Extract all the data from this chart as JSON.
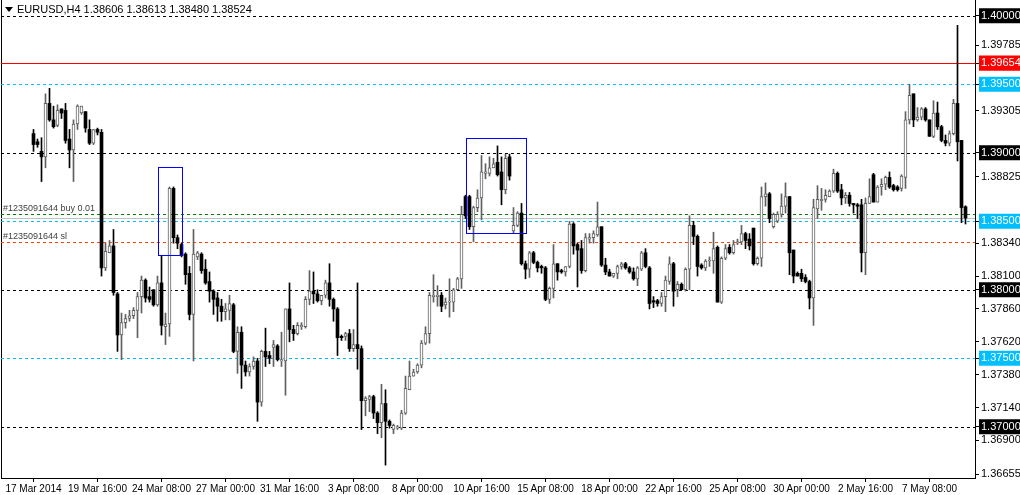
{
  "chart_data": {
    "type": "candlestick",
    "title": "EURUSD,H4 1.38606 1.38613 1.38480 1.38524",
    "categories": [
      "17 Mar 2014",
      null,
      null,
      null,
      null,
      null,
      null,
      null,
      null,
      null,
      null,
      null,
      null,
      null,
      null,
      null,
      "19 Mar 16:00",
      null,
      null,
      null,
      null,
      null,
      null,
      null,
      null,
      null,
      null,
      null,
      null,
      null,
      null,
      null,
      "24 Mar 08:00",
      null,
      null,
      null,
      null,
      null,
      null,
      null,
      null,
      null,
      null,
      null,
      null,
      null,
      null,
      null,
      "27 Mar 00:00",
      null,
      null,
      null,
      null,
      null,
      null,
      null,
      null,
      null,
      null,
      null,
      null,
      null,
      null,
      null,
      "31 Mar 16:00",
      null,
      null,
      null,
      null,
      null,
      null,
      null,
      null,
      null,
      null,
      null,
      null,
      null,
      null,
      null,
      "3 Apr 08:00",
      null,
      null,
      null,
      null,
      null,
      null,
      null,
      null,
      null,
      null,
      null,
      null,
      null,
      null,
      null,
      "8 Apr 00:00",
      null,
      null,
      null,
      null,
      null,
      null,
      null,
      null,
      null,
      null,
      null,
      null,
      null,
      null,
      null,
      "10 Apr 16:00",
      null,
      null,
      null,
      null,
      null,
      null,
      null,
      null,
      null,
      null,
      null,
      null,
      null,
      null,
      null,
      "15 Apr 08:00",
      null,
      null,
      null,
      null,
      null,
      null,
      null,
      null,
      null,
      null,
      null,
      null,
      null,
      null,
      null,
      "18 Apr 00:00",
      null,
      null,
      null,
      null,
      null,
      null,
      null,
      null,
      null,
      null,
      null,
      null,
      null,
      null,
      null,
      "22 Apr 16:00",
      null,
      null,
      null,
      null,
      null,
      null,
      null,
      null,
      null,
      null,
      null,
      null,
      null,
      null,
      null,
      "25 Apr 08:00",
      null,
      null,
      null,
      null,
      null,
      null,
      null,
      null,
      null,
      null,
      null,
      null,
      null,
      null,
      null,
      "30 Apr 00:00",
      null,
      null,
      null,
      null,
      null,
      null,
      null,
      null,
      null,
      null,
      null,
      null,
      null,
      null,
      null,
      "2 May 16:00",
      null,
      null,
      null,
      null,
      null,
      null,
      null,
      null,
      null,
      null,
      null,
      null,
      null,
      null,
      null,
      "7 May 08:00",
      null,
      null,
      null,
      null,
      null,
      null,
      null,
      null,
      null
    ],
    "ohlc": [
      [
        1.3914,
        1.3917,
        1.3901,
        1.3906
      ],
      [
        1.3908,
        1.391,
        1.3904,
        1.3906
      ],
      [
        1.3901,
        1.3911,
        1.3879,
        1.3897
      ],
      [
        1.3897,
        1.3943,
        1.3889,
        1.3936
      ],
      [
        1.3936,
        1.3947,
        1.3923,
        1.3924
      ],
      [
        1.3924,
        1.3934,
        1.3918,
        1.3919
      ],
      [
        1.392,
        1.3935,
        1.3919,
        1.3931
      ],
      [
        1.3932,
        1.3932,
        1.3925,
        1.3929
      ],
      [
        1.3931,
        1.3936,
        1.3907,
        1.3909
      ],
      [
        1.391,
        1.3917,
        1.3889,
        1.3902
      ],
      [
        1.3902,
        1.3924,
        1.3879,
        1.3921
      ],
      [
        1.3921,
        1.3935,
        1.3917,
        1.3934
      ],
      [
        1.3929,
        1.3934,
        1.3928,
        1.3934
      ],
      [
        1.393,
        1.393,
        1.3915,
        1.3918
      ],
      [
        1.3917,
        1.3924,
        1.3906,
        1.3907
      ],
      [
        1.3907,
        1.3917,
        1.3906,
        1.3917
      ],
      [
        1.3917,
        1.3918,
        1.3913,
        1.3915
      ],
      [
        1.3915,
        1.3917,
        1.381,
        1.3816
      ],
      [
        1.3816,
        1.3834,
        1.3814,
        1.3828
      ],
      [
        1.3827,
        1.3836,
        1.3827,
        1.3832
      ],
      [
        1.3832,
        1.3844,
        1.3796,
        1.3798
      ],
      [
        1.3797,
        1.3798,
        1.3755,
        1.3767
      ],
      [
        1.3767,
        1.3783,
        1.3749,
        1.3776
      ],
      [
        1.3776,
        1.3782,
        1.3772,
        1.3779
      ],
      [
        1.3779,
        1.3785,
        1.3777,
        1.3781
      ],
      [
        1.3781,
        1.3787,
        1.3779,
        1.3785
      ],
      [
        1.3785,
        1.3798,
        1.3765,
        1.3795
      ],
      [
        1.3795,
        1.381,
        1.3783,
        1.3807
      ],
      [
        1.3807,
        1.3808,
        1.3791,
        1.3794
      ],
      [
        1.3795,
        1.3802,
        1.3791,
        1.3793
      ],
      [
        1.38,
        1.38,
        1.3788,
        1.3789
      ],
      [
        1.3789,
        1.381,
        1.3788,
        1.3805
      ],
      [
        1.3805,
        1.3825,
        1.3767,
        1.3774
      ],
      [
        1.3773,
        1.3783,
        1.376,
        1.3775
      ],
      [
        1.3775,
        1.3875,
        1.3766,
        1.3874
      ],
      [
        1.3874,
        1.3875,
        1.3834,
        1.3838
      ],
      [
        1.3838,
        1.384,
        1.383,
        1.3834
      ],
      [
        1.3833,
        1.3834,
        1.3824,
        1.3825
      ],
      [
        1.3826,
        1.3827,
        1.3804,
        1.3811
      ],
      [
        1.3812,
        1.3817,
        1.3778,
        1.3782
      ],
      [
        1.3782,
        1.3844,
        1.3748,
        1.3826
      ],
      [
        1.3824,
        1.3828,
        1.3822,
        1.3827
      ],
      [
        1.3826,
        1.3827,
        1.3812,
        1.3814
      ],
      [
        1.3815,
        1.3822,
        1.3804,
        1.3805
      ],
      [
        1.3806,
        1.3813,
        1.3791,
        1.3799
      ],
      [
        1.3799,
        1.38,
        1.3782,
        1.3793
      ],
      [
        1.3794,
        1.3798,
        1.3777,
        1.3788
      ],
      [
        1.3788,
        1.3793,
        1.3777,
        1.3784
      ],
      [
        1.3784,
        1.379,
        1.3778,
        1.3786
      ],
      [
        1.3785,
        1.3796,
        1.3778,
        1.379
      ],
      [
        1.3789,
        1.379,
        1.3754,
        1.3755
      ],
      [
        1.3755,
        1.3773,
        1.3739,
        1.3769
      ],
      [
        1.3769,
        1.3773,
        1.3728,
        1.3745
      ],
      [
        1.3745,
        1.3748,
        1.3737,
        1.374
      ],
      [
        1.374,
        1.3746,
        1.3737,
        1.3744
      ],
      [
        1.3744,
        1.3751,
        1.3742,
        1.3748
      ],
      [
        1.3748,
        1.375,
        1.3704,
        1.3718
      ],
      [
        1.3718,
        1.3756,
        1.3715,
        1.3755
      ],
      [
        1.3755,
        1.3772,
        1.3744,
        1.3751
      ],
      [
        1.3752,
        1.3755,
        1.3746,
        1.375
      ],
      [
        1.3758,
        1.3763,
        1.3744,
        1.376
      ],
      [
        1.3759,
        1.376,
        1.3748,
        1.3749
      ],
      [
        1.3748,
        1.3769,
        1.3744,
        1.3749
      ],
      [
        1.3748,
        1.3786,
        1.3723,
        1.3786
      ],
      [
        1.3786,
        1.3805,
        1.3762,
        1.3771
      ],
      [
        1.3771,
        1.3774,
        1.3763,
        1.3768
      ],
      [
        1.3768,
        1.3776,
        1.3767,
        1.3774
      ],
      [
        1.3773,
        1.3776,
        1.3771,
        1.3774
      ],
      [
        1.3773,
        1.3795,
        1.3772,
        1.3793
      ],
      [
        1.3793,
        1.3814,
        1.3789,
        1.3799
      ],
      [
        1.3799,
        1.3813,
        1.379,
        1.3797
      ],
      [
        1.3797,
        1.38,
        1.3791,
        1.3792
      ],
      [
        1.3792,
        1.3796,
        1.3789,
        1.3796
      ],
      [
        1.3796,
        1.3807,
        1.3794,
        1.3805
      ],
      [
        1.3805,
        1.3819,
        1.3788,
        1.3793
      ],
      [
        1.3793,
        1.3794,
        1.3777,
        1.3786
      ],
      [
        1.3786,
        1.3787,
        1.3752,
        1.3765
      ],
      [
        1.3766,
        1.3767,
        1.3763,
        1.3765
      ],
      [
        1.3766,
        1.3769,
        1.3763,
        1.3768
      ],
      [
        1.3768,
        1.3771,
        1.3755,
        1.3757
      ],
      [
        1.3757,
        1.3771,
        1.3755,
        1.376
      ],
      [
        1.376,
        1.3805,
        1.3742,
        1.3757
      ],
      [
        1.3757,
        1.3759,
        1.3698,
        1.3719
      ],
      [
        1.3719,
        1.3722,
        1.3708,
        1.3721
      ],
      [
        1.372,
        1.3723,
        1.3711,
        1.3722
      ],
      [
        1.3722,
        1.3723,
        1.3706,
        1.371
      ],
      [
        1.371,
        1.3711,
        1.3695,
        1.3703
      ],
      [
        1.3703,
        1.3731,
        1.3692,
        1.3717
      ],
      [
        1.3717,
        1.3727,
        1.3672,
        1.3704
      ],
      [
        1.3704,
        1.3705,
        1.3699,
        1.3701
      ],
      [
        1.3698,
        1.3702,
        1.3695,
        1.3701
      ],
      [
        1.3699,
        1.3701,
        1.3698,
        1.37
      ],
      [
        1.3699,
        1.3712,
        1.3698,
        1.371
      ],
      [
        1.371,
        1.3737,
        1.3709,
        1.3728
      ],
      [
        1.3727,
        1.3748,
        1.3727,
        1.3737
      ],
      [
        1.3737,
        1.3742,
        1.3737,
        1.374
      ],
      [
        1.374,
        1.3746,
        1.3739,
        1.3745
      ],
      [
        1.3745,
        1.3763,
        1.3743,
        1.3761
      ],
      [
        1.3761,
        1.3773,
        1.376,
        1.3768
      ],
      [
        1.3768,
        1.3798,
        1.3761,
        1.3796
      ],
      [
        1.3795,
        1.3811,
        1.3791,
        1.3796
      ],
      [
        1.3795,
        1.3803,
        1.3788,
        1.3796
      ],
      [
        1.3796,
        1.3798,
        1.3784,
        1.3788
      ],
      [
        1.3789,
        1.3794,
        1.3786,
        1.3791
      ],
      [
        1.3791,
        1.3808,
        1.378,
        1.3791
      ],
      [
        1.3791,
        1.3801,
        1.3784,
        1.38
      ],
      [
        1.38,
        1.3809,
        1.38,
        1.3808
      ],
      [
        1.3808,
        1.3861,
        1.3801,
        1.3855
      ],
      [
        1.3868,
        1.3869,
        1.3852,
        1.3854
      ],
      [
        1.3868,
        1.3869,
        1.3844,
        1.3846
      ],
      [
        1.3846,
        1.3861,
        1.3835,
        1.386
      ],
      [
        1.386,
        1.3873,
        1.3857,
        1.3867
      ],
      [
        1.3867,
        1.3898,
        1.3851,
        1.3886
      ],
      [
        1.3885,
        1.3892,
        1.3881,
        1.3886
      ],
      [
        1.3885,
        1.3897,
        1.3883,
        1.3889
      ],
      [
        1.3889,
        1.3896,
        1.3889,
        1.3892
      ],
      [
        1.3893,
        1.3905,
        1.3883,
        1.3884
      ],
      [
        1.3886,
        1.3897,
        1.3862,
        1.3873
      ],
      [
        1.3873,
        1.3899,
        1.387,
        1.3896
      ],
      [
        1.3897,
        1.3899,
        1.388,
        1.3883
      ],
      [
        1.3843,
        1.386,
        1.3841,
        1.3847
      ],
      [
        1.3847,
        1.3857,
        1.3846,
        1.3856
      ],
      [
        1.3856,
        1.3863,
        1.3818,
        1.3819
      ],
      [
        1.3819,
        1.3821,
        1.3808,
        1.3815
      ],
      [
        1.3815,
        1.3828,
        1.3809,
        1.3827
      ],
      [
        1.3827,
        1.3828,
        1.3819,
        1.382
      ],
      [
        1.382,
        1.3821,
        1.3813,
        1.3816
      ],
      [
        1.3817,
        1.3818,
        1.3812,
        1.3816
      ],
      [
        1.3816,
        1.3817,
        1.3792,
        1.3793
      ],
      [
        1.3793,
        1.3802,
        1.379,
        1.3801
      ],
      [
        1.3801,
        1.3833,
        1.3794,
        1.3819
      ],
      [
        1.3819,
        1.3819,
        1.3807,
        1.3813
      ],
      [
        1.3814,
        1.3815,
        1.3812,
        1.3813
      ],
      [
        1.3813,
        1.3817,
        1.381,
        1.3817
      ],
      [
        1.3817,
        1.385,
        1.3816,
        1.3848
      ],
      [
        1.3848,
        1.3849,
        1.3826,
        1.3832
      ],
      [
        1.3833,
        1.3834,
        1.3802,
        1.3829
      ],
      [
        1.383,
        1.3836,
        1.3812,
        1.3814
      ],
      [
        1.3814,
        1.3841,
        1.3813,
        1.3838
      ],
      [
        1.3837,
        1.3841,
        1.3834,
        1.3838
      ],
      [
        1.3838,
        1.3843,
        1.3834,
        1.3841
      ],
      [
        1.384,
        1.3864,
        1.3839,
        1.3846
      ],
      [
        1.3846,
        1.3846,
        1.3817,
        1.3818
      ],
      [
        1.3818,
        1.3823,
        1.3811,
        1.3813
      ],
      [
        1.3813,
        1.3815,
        1.381,
        1.381
      ],
      [
        1.381,
        1.3812,
        1.3809,
        1.3812
      ],
      [
        1.3812,
        1.3818,
        1.3808,
        1.3817
      ],
      [
        1.3817,
        1.382,
        1.3815,
        1.3819
      ],
      [
        1.3819,
        1.382,
        1.3815,
        1.3816
      ],
      [
        1.3816,
        1.3817,
        1.3812,
        1.3813
      ],
      [
        1.3813,
        1.3816,
        1.3807,
        1.3808
      ],
      [
        1.3808,
        1.3817,
        1.3803,
        1.3816
      ],
      [
        1.3815,
        1.3828,
        1.3814,
        1.3827
      ],
      [
        1.3827,
        1.383,
        1.3816,
        1.3817
      ],
      [
        1.3816,
        1.3817,
        1.3786,
        1.379
      ],
      [
        1.3792,
        1.3795,
        1.3787,
        1.3791
      ],
      [
        1.3792,
        1.3793,
        1.3788,
        1.379
      ],
      [
        1.379,
        1.3798,
        1.3788,
        1.3795
      ],
      [
        1.3795,
        1.381,
        1.3784,
        1.3807
      ],
      [
        1.3806,
        1.3824,
        1.3804,
        1.3819
      ],
      [
        1.3819,
        1.382,
        1.3788,
        1.3799
      ],
      [
        1.38,
        1.3806,
        1.3795,
        1.3804
      ],
      [
        1.3804,
        1.3805,
        1.38,
        1.38
      ],
      [
        1.38,
        1.3816,
        1.3799,
        1.3815
      ],
      [
        1.3815,
        1.3854,
        1.38,
        1.3847
      ],
      [
        1.3847,
        1.385,
        1.3833,
        1.3839
      ],
      [
        1.3839,
        1.384,
        1.381,
        1.3817
      ],
      [
        1.3818,
        1.3819,
        1.3815,
        1.3816
      ],
      [
        1.3816,
        1.3822,
        1.3814,
        1.3821
      ],
      [
        1.3821,
        1.3824,
        1.3817,
        1.3821
      ],
      [
        1.3821,
        1.3842,
        1.3812,
        1.383
      ],
      [
        1.3831,
        1.3832,
        1.3791,
        1.3791
      ],
      [
        1.3791,
        1.3824,
        1.379,
        1.3823
      ],
      [
        1.3823,
        1.3833,
        1.3822,
        1.383
      ],
      [
        1.3831,
        1.3833,
        1.3826,
        1.3827
      ],
      [
        1.3827,
        1.3836,
        1.3826,
        1.3833
      ],
      [
        1.3834,
        1.3837,
        1.3833,
        1.3835
      ],
      [
        1.3835,
        1.3847,
        1.3833,
        1.3841
      ],
      [
        1.3841,
        1.3842,
        1.383,
        1.3836
      ],
      [
        1.3837,
        1.3841,
        1.3829,
        1.3832
      ],
      [
        1.3845,
        1.3845,
        1.3818,
        1.3819
      ],
      [
        1.3819,
        1.3824,
        1.3818,
        1.3823
      ],
      [
        1.3823,
        1.3875,
        1.3817,
        1.3868
      ],
      [
        1.3868,
        1.3878,
        1.3861,
        1.387
      ],
      [
        1.387,
        1.3871,
        1.3849,
        1.3852
      ],
      [
        1.3846,
        1.3856,
        1.3845,
        1.3855
      ],
      [
        1.385,
        1.3857,
        1.3849,
        1.3855
      ],
      [
        1.3855,
        1.387,
        1.3853,
        1.3861
      ],
      [
        1.3861,
        1.3878,
        1.3856,
        1.3868
      ],
      [
        1.3868,
        1.3868,
        1.3811,
        1.3827
      ],
      [
        1.3829,
        1.3829,
        1.3805,
        1.381
      ],
      [
        1.3812,
        1.3813,
        1.381,
        1.381
      ],
      [
        1.3812,
        1.3815,
        1.3806,
        1.3808
      ],
      [
        1.3809,
        1.3811,
        1.3805,
        1.3806
      ],
      [
        1.3806,
        1.3807,
        1.3786,
        1.3794
      ],
      [
        1.3794,
        1.3866,
        1.3774,
        1.386
      ],
      [
        1.3859,
        1.3876,
        1.3852,
        1.3866
      ],
      [
        1.3865,
        1.3874,
        1.3858,
        1.3866
      ],
      [
        1.3866,
        1.3873,
        1.3864,
        1.3869
      ],
      [
        1.3868,
        1.3873,
        1.3868,
        1.3872
      ],
      [
        1.3872,
        1.3888,
        1.3871,
        1.3885
      ],
      [
        1.3885,
        1.3886,
        1.3871,
        1.3872
      ],
      [
        1.3873,
        1.3877,
        1.3862,
        1.3867
      ],
      [
        1.3867,
        1.3871,
        1.3863,
        1.3869
      ],
      [
        1.3869,
        1.3871,
        1.3861,
        1.3863
      ],
      [
        1.3863,
        1.3863,
        1.3856,
        1.3862
      ],
      [
        1.3862,
        1.3863,
        1.3852,
        1.3861
      ],
      [
        1.3862,
        1.3866,
        1.3813,
        1.3827
      ],
      [
        1.3827,
        1.3867,
        1.3811,
        1.3863
      ],
      [
        1.3863,
        1.3881,
        1.3863,
        1.3868
      ],
      [
        1.3884,
        1.3885,
        1.3864,
        1.3864
      ],
      [
        1.3864,
        1.3876,
        1.3864,
        1.3875
      ],
      [
        1.3875,
        1.3881,
        1.3869,
        1.3877
      ],
      [
        1.3877,
        1.3883,
        1.3873,
        1.3882
      ],
      [
        1.3882,
        1.3886,
        1.3874,
        1.3875
      ],
      [
        1.3876,
        1.3877,
        1.3872,
        1.3873
      ],
      [
        1.3875,
        1.3876,
        1.3872,
        1.3873
      ],
      [
        1.3874,
        1.3884,
        1.3872,
        1.3883
      ],
      [
        1.3882,
        1.393,
        1.3874,
        1.3924
      ],
      [
        1.3924,
        1.395,
        1.3921,
        1.3942
      ],
      [
        1.3943,
        1.3943,
        1.3919,
        1.3924
      ],
      [
        1.3924,
        1.3933,
        1.3923,
        1.3926
      ],
      [
        1.3926,
        1.3933,
        1.3924,
        1.3932
      ],
      [
        1.3932,
        1.3933,
        1.3923,
        1.3924
      ],
      [
        1.3924,
        1.3924,
        1.3912,
        1.3912
      ],
      [
        1.3912,
        1.3938,
        1.3911,
        1.3929
      ],
      [
        1.3929,
        1.3937,
        1.3917,
        1.3919
      ],
      [
        1.3919,
        1.392,
        1.3908,
        1.3909
      ],
      [
        1.3909,
        1.3913,
        1.3905,
        1.3907
      ],
      [
        1.3907,
        1.3916,
        1.3905,
        1.3914
      ],
      [
        1.3914,
        1.3939,
        1.3913,
        1.3936
      ],
      [
        1.3936,
        1.3993,
        1.3894,
        1.3908
      ],
      [
        1.3909,
        1.3909,
        1.3849,
        1.386
      ],
      [
        1.38606,
        1.38613,
        1.3848,
        1.38524
      ]
    ],
    "ylim": [
      1.36626,
      1.40115
    ],
    "yticks": [
      1.36655,
      {
        "value": 1.369,
        "label": "1.36900"
      },
      {
        "value": 1.37,
        "label": "1.37000"
      },
      {
        "value": 1.3714,
        "label": "1.37140"
      },
      {
        "value": 1.3738,
        "label": "1.37380"
      },
      {
        "value": 1.375,
        "label": "1.37500"
      },
      {
        "value": 1.3762,
        "label": "1.37620"
      },
      {
        "value": 1.3786,
        "label": "1.37860"
      },
      {
        "value": 1.38,
        "label": "1.38000"
      },
      {
        "value": 1.381,
        "label": "1.38100"
      },
      {
        "value": 1.3834,
        "label": "1.38340"
      },
      {
        "value": 1.385,
        "label": "1.38500"
      },
      1.38825,
      {
        "value": 1.39,
        "label": "1.39000"
      },
      1.39305,
      {
        "value": 1.395,
        "label": "1.39500"
      },
      1.39654,
      1.39785,
      {
        "value": 1.4,
        "label": "1.40000"
      }
    ],
    "ref_lines": [
      {
        "axis": "y",
        "value": 1.4,
        "color": "#000000",
        "line_style": "dashed"
      },
      {
        "axis": "y",
        "value": 1.39654,
        "color": "#ff0000"
      },
      {
        "axis": "y",
        "value": 1.395,
        "color": "#00bfff",
        "line_style": "dashed"
      },
      {
        "axis": "y",
        "value": 1.39,
        "color": "#000000",
        "line_style": "dashed"
      },
      {
        "axis": "y",
        "value": 1.3855,
        "label": "#1235091644 buy 0.01",
        "color": "#008000",
        "line_style": "dashed"
      },
      {
        "axis": "y",
        "value": 1.38524,
        "color": "#c0c0c0"
      },
      {
        "axis": "y",
        "value": 1.385,
        "color": "#00bfff",
        "line_style": "dashed"
      },
      {
        "axis": "y",
        "value": 1.3835,
        "label": "#1235091644 sl",
        "color": "#ff4500",
        "line_style": "dashed"
      },
      {
        "axis": "y",
        "value": 1.38,
        "color": "#000000",
        "line_style": "dashed"
      },
      {
        "axis": "y",
        "value": 1.375,
        "color": "#00bfff",
        "line_style": "dashed"
      },
      {
        "axis": "y",
        "value": 1.37,
        "color": "#000000",
        "line_style": "dashed"
      }
    ]
  }
}
